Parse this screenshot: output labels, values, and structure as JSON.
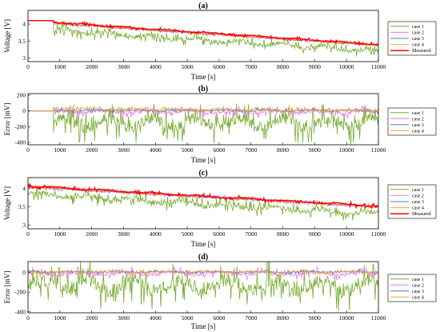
{
  "colors": {
    "case1": "#77ac30",
    "case2": "#e67ee6",
    "case3": "#4d78b7",
    "case4": "#f2a23b",
    "measured": "#ff0000"
  },
  "chart_data": [
    {
      "type": "line",
      "title": "(a)",
      "xlabel": "Time [s]",
      "ylabel": "Voltage [V]",
      "xlim": [
        0,
        11000
      ],
      "ylim": [
        2.9,
        4.4
      ],
      "xticks": [
        "0",
        "1000",
        "2000",
        "3000",
        "4000",
        "5000",
        "6000",
        "7000",
        "8000",
        "9000",
        "10000",
        "11000"
      ],
      "yticks": [
        "3",
        "3.5",
        "4"
      ],
      "grid": false,
      "legend_position": "right",
      "noisy_start_x": 800,
      "flat_value_before_start": 4.1,
      "series": [
        {
          "name": "case 1",
          "color_key": "case1",
          "x": [
            800,
            11000
          ],
          "y": [
            3.82,
            3.2
          ],
          "noise": 0.2,
          "offset": -0.18
        },
        {
          "name": "case 2",
          "color_key": "case2",
          "x": [
            800,
            11000
          ],
          "y": [
            4.02,
            3.38
          ],
          "noise": 0.06,
          "offset": -0.02
        },
        {
          "name": "case 3",
          "color_key": "case3",
          "x": [
            800,
            11000
          ],
          "y": [
            4.02,
            3.38
          ],
          "noise": 0.04,
          "offset": 0
        },
        {
          "name": "case 4",
          "color_key": "case4",
          "x": [
            800,
            11000
          ],
          "y": [
            4.02,
            3.38
          ],
          "noise": 0.04,
          "offset": 0
        },
        {
          "name": "Measured",
          "color_key": "measured",
          "x": [
            800,
            11000
          ],
          "y": [
            4.05,
            3.4
          ],
          "noise": 0.05,
          "offset": 0
        }
      ]
    },
    {
      "type": "line",
      "title": "(b)",
      "xlabel": "Time [s]",
      "ylabel": "Error [mV]",
      "xlim": [
        0,
        11000
      ],
      "ylim": [
        -430,
        220
      ],
      "xticks": [
        "0",
        "1000",
        "2000",
        "3000",
        "4000",
        "5000",
        "6000",
        "7000",
        "8000",
        "9000",
        "10000",
        "11000"
      ],
      "yticks": [
        "-400",
        "-200",
        "0",
        "200"
      ],
      "grid": false,
      "legend_position": "right",
      "noisy_start_x": 800,
      "flat_value_before_start": 0,
      "series": [
        {
          "name": "case 1",
          "color_key": "case1",
          "x": [
            800,
            11000
          ],
          "y": [
            -150,
            -150
          ],
          "noise": 230,
          "offset": 0
        },
        {
          "name": "case 2",
          "color_key": "case2",
          "x": [
            800,
            11000
          ],
          "y": [
            -10,
            -10
          ],
          "noise": 70,
          "offset": 0
        },
        {
          "name": "case 3",
          "color_key": "case3",
          "x": [
            800,
            11000
          ],
          "y": [
            5,
            5
          ],
          "noise": 25,
          "offset": 0
        },
        {
          "name": "case 4",
          "color_key": "case4",
          "x": [
            800,
            11000
          ],
          "y": [
            30,
            5
          ],
          "noise": 35,
          "offset": 0
        }
      ]
    },
    {
      "type": "line",
      "title": "(c)",
      "xlabel": "Time [s]",
      "ylabel": "Voltage [V]",
      "xlim": [
        0,
        11000
      ],
      "ylim": [
        2.9,
        4.3
      ],
      "xticks": [
        "0",
        "1000",
        "2000",
        "3000",
        "4000",
        "5000",
        "6000",
        "7000",
        "8000",
        "9000",
        "10000",
        "11000"
      ],
      "yticks": [
        "3",
        "3.5",
        "4"
      ],
      "grid": false,
      "legend_position": "right",
      "noisy_start_x": 0,
      "flat_value_before_start": 4.1,
      "series": [
        {
          "name": "case 1",
          "color_key": "case1",
          "x": [
            0,
            11000
          ],
          "y": [
            3.85,
            3.3
          ],
          "noise": 0.22,
          "offset": -0.15
        },
        {
          "name": "case 2",
          "color_key": "case2",
          "x": [
            0,
            11000
          ],
          "y": [
            4.05,
            3.5
          ],
          "noise": 0.07,
          "offset": 0
        },
        {
          "name": "case 3",
          "color_key": "case3",
          "x": [
            0,
            11000
          ],
          "y": [
            4.05,
            3.5
          ],
          "noise": 0.04,
          "offset": 0
        },
        {
          "name": "case 4",
          "color_key": "case4",
          "x": [
            0,
            11000
          ],
          "y": [
            4.05,
            3.5
          ],
          "noise": 0.04,
          "offset": 0
        },
        {
          "name": "Measured",
          "color_key": "measured",
          "x": [
            0,
            11000
          ],
          "y": [
            4.07,
            3.52
          ],
          "noise": 0.06,
          "offset": 0
        }
      ]
    },
    {
      "type": "line",
      "title": "(d)",
      "xlabel": "Time [s]",
      "ylabel": "Error [mV]",
      "xlim": [
        0,
        11000
      ],
      "ylim": [
        -410,
        110
      ],
      "xticks": [
        "0",
        "1000",
        "2000",
        "3000",
        "4000",
        "5000",
        "6000",
        "7000",
        "8000",
        "9000",
        "10000",
        "11000"
      ],
      "yticks": [
        "-400",
        "-200",
        "0"
      ],
      "grid": false,
      "legend_position": "right",
      "noisy_start_x": 0,
      "flat_value_before_start": 0,
      "series": [
        {
          "name": "case 1",
          "color_key": "case1",
          "x": [
            0,
            11000
          ],
          "y": [
            -130,
            -130
          ],
          "noise": 230,
          "offset": 0
        },
        {
          "name": "case 2",
          "color_key": "case2",
          "x": [
            0,
            11000
          ],
          "y": [
            -10,
            -10
          ],
          "noise": 60,
          "offset": 0
        },
        {
          "name": "case 3",
          "color_key": "case3",
          "x": [
            0,
            11000
          ],
          "y": [
            5,
            5
          ],
          "noise": 20,
          "offset": 0
        },
        {
          "name": "case 4",
          "color_key": "case4",
          "x": [
            0,
            11000
          ],
          "y": [
            5,
            5
          ],
          "noise": 20,
          "offset": 0
        }
      ]
    }
  ]
}
